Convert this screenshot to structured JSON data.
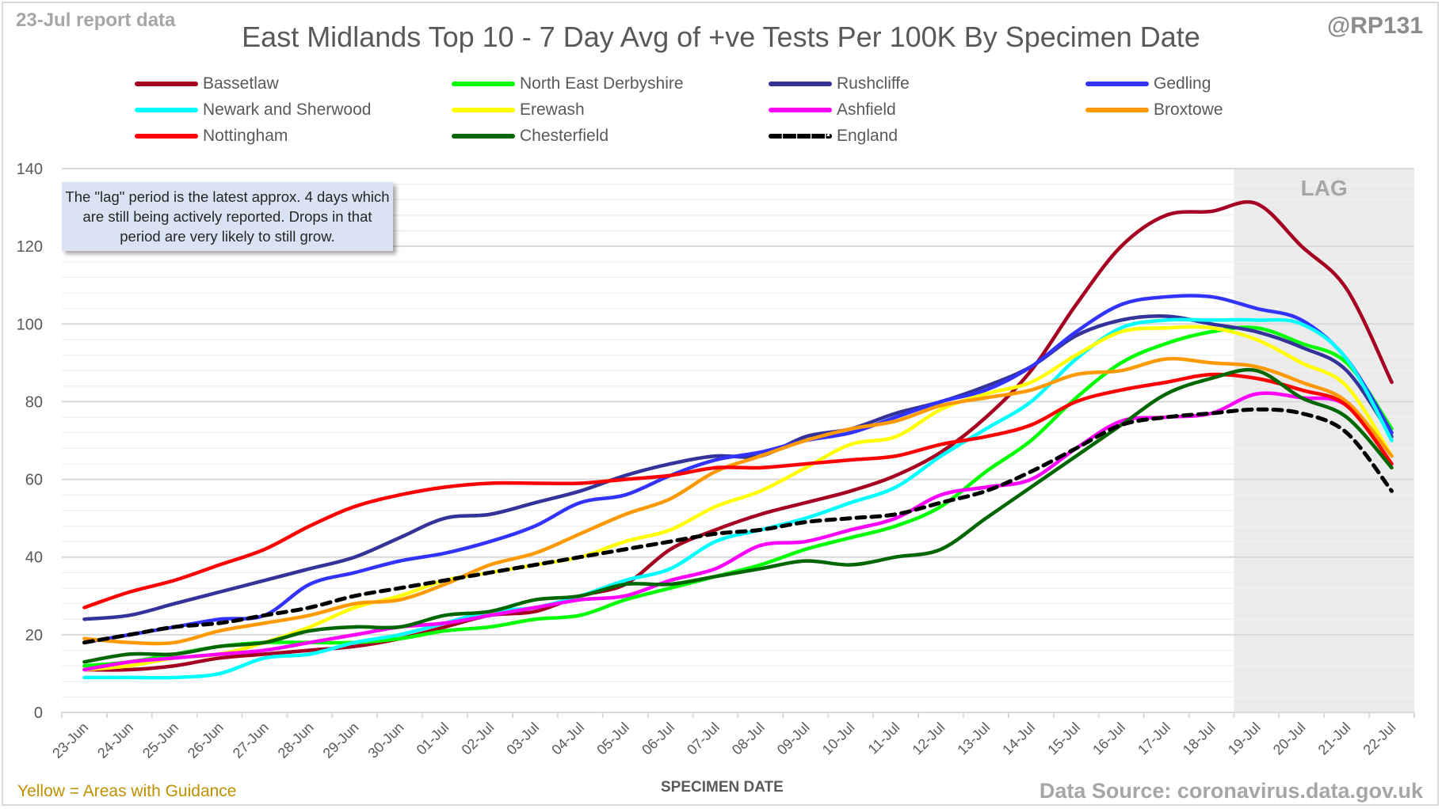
{
  "header": {
    "report_date": "23-Jul report data",
    "handle": "@RP131",
    "title": "East Midlands Top 10 - 7 Day Avg of +ve Tests Per 100K By Specimen Date"
  },
  "note": "The \"lag\" period is the latest approx. 4 days which are still being actively reported. Drops in that period are very likely to still grow.",
  "footer": {
    "guidance": "Yellow = Areas with Guidance",
    "source": "Data Source: coronavirus.data.gov.uk"
  },
  "chart_data": {
    "type": "line",
    "title": "East Midlands Top 10 - 7 Day Avg of +ve Tests Per 100K By Specimen Date",
    "xlabel": "SPECIMEN DATE",
    "ylabel": "",
    "ylim": [
      0,
      140
    ],
    "yticks": [
      0,
      20,
      40,
      60,
      80,
      100,
      120,
      140
    ],
    "grid": true,
    "legend_position": "top",
    "lag_region": {
      "label": "LAG",
      "from": "19-Jul",
      "to": "22-Jul"
    },
    "x": [
      "23-Jun",
      "24-Jun",
      "25-Jun",
      "26-Jun",
      "27-Jun",
      "28-Jun",
      "29-Jun",
      "30-Jun",
      "01-Jul",
      "02-Jul",
      "03-Jul",
      "04-Jul",
      "05-Jul",
      "06-Jul",
      "07-Jul",
      "08-Jul",
      "09-Jul",
      "10-Jul",
      "11-Jul",
      "12-Jul",
      "13-Jul",
      "14-Jul",
      "15-Jul",
      "16-Jul",
      "17-Jul",
      "18-Jul",
      "19-Jul",
      "20-Jul",
      "21-Jul",
      "22-Jul"
    ],
    "series": [
      {
        "name": "Bassetlaw",
        "color": "#a50021",
        "dashed": false,
        "values": [
          11,
          11,
          12,
          14,
          15,
          16,
          17,
          19,
          22,
          25,
          26,
          30,
          33,
          42,
          47,
          51,
          54,
          57,
          61,
          67,
          76,
          88,
          105,
          120,
          128,
          129,
          131,
          120,
          109,
          85
        ]
      },
      {
        "name": "North East Derbyshire",
        "color": "#00ff00",
        "dashed": false,
        "values": [
          12,
          13,
          15,
          17,
          18,
          18,
          18,
          19,
          21,
          22,
          24,
          25,
          29,
          32,
          35,
          38,
          42,
          45,
          48,
          53,
          62,
          70,
          81,
          90,
          95,
          98,
          99,
          95,
          90,
          73
        ]
      },
      {
        "name": "Rushcliffe",
        "color": "#333399",
        "dashed": false,
        "values": [
          24,
          25,
          28,
          31,
          34,
          37,
          40,
          45,
          50,
          51,
          54,
          57,
          61,
          64,
          66,
          66,
          71,
          73,
          77,
          80,
          84,
          89,
          97,
          101,
          102,
          100,
          98,
          94,
          88,
          71
        ]
      },
      {
        "name": "Gedling",
        "color": "#3333ff",
        "dashed": false,
        "values": [
          18,
          20,
          22,
          24,
          25,
          33,
          36,
          39,
          41,
          44,
          48,
          54,
          56,
          61,
          65,
          67,
          70,
          72,
          76,
          80,
          83,
          89,
          98,
          105,
          107,
          107,
          104,
          101,
          91,
          72
        ]
      },
      {
        "name": "Newark and Sherwood",
        "color": "#00ffff",
        "dashed": false,
        "values": [
          9,
          9,
          9,
          10,
          14,
          15,
          18,
          20,
          23,
          26,
          27,
          30,
          34,
          37,
          44,
          47,
          50,
          54,
          58,
          66,
          73,
          80,
          91,
          99,
          101,
          101,
          101,
          100,
          91,
          70
        ]
      },
      {
        "name": "Erewash",
        "color": "#ffff00",
        "dashed": false,
        "values": [
          11,
          12,
          14,
          15,
          18,
          22,
          27,
          30,
          34,
          36,
          38,
          40,
          44,
          47,
          53,
          57,
          63,
          69,
          71,
          78,
          82,
          85,
          92,
          98,
          99,
          99,
          96,
          90,
          84,
          66
        ]
      },
      {
        "name": "Ashfield",
        "color": "#ff00ff",
        "dashed": false,
        "values": [
          11,
          13,
          14,
          15,
          16,
          18,
          20,
          22,
          23,
          25,
          27,
          29,
          30,
          34,
          37,
          43,
          44,
          47,
          50,
          56,
          58,
          60,
          68,
          75,
          76,
          77,
          82,
          81,
          79,
          64
        ]
      },
      {
        "name": "Broxtowe",
        "color": "#ff9900",
        "dashed": false,
        "values": [
          19,
          18,
          18,
          21,
          23,
          25,
          28,
          29,
          33,
          38,
          41,
          46,
          51,
          55,
          62,
          66,
          70,
          73,
          75,
          79,
          81,
          83,
          87,
          88,
          91,
          90,
          89,
          85,
          80,
          66
        ]
      },
      {
        "name": "Nottingham",
        "color": "#ff0000",
        "dashed": false,
        "values": [
          27,
          31,
          34,
          38,
          42,
          48,
          53,
          56,
          58,
          59,
          59,
          59,
          60,
          61,
          63,
          63,
          64,
          65,
          66,
          69,
          71,
          74,
          80,
          83,
          85,
          87,
          86,
          83,
          79,
          64
        ]
      },
      {
        "name": "Chesterfield",
        "color": "#006600",
        "dashed": false,
        "values": [
          13,
          15,
          15,
          17,
          18,
          21,
          22,
          22,
          25,
          26,
          29,
          30,
          33,
          33,
          35,
          37,
          39,
          38,
          40,
          42,
          50,
          58,
          66,
          74,
          82,
          86,
          88,
          81,
          76,
          63
        ]
      },
      {
        "name": "England",
        "color": "#000000",
        "dashed": true,
        "values": [
          18,
          20,
          22,
          23,
          25,
          27,
          30,
          32,
          34,
          36,
          38,
          40,
          42,
          44,
          46,
          47,
          49,
          50,
          51,
          54,
          57,
          62,
          68,
          74,
          76,
          77,
          78,
          77,
          72,
          57
        ]
      }
    ]
  }
}
